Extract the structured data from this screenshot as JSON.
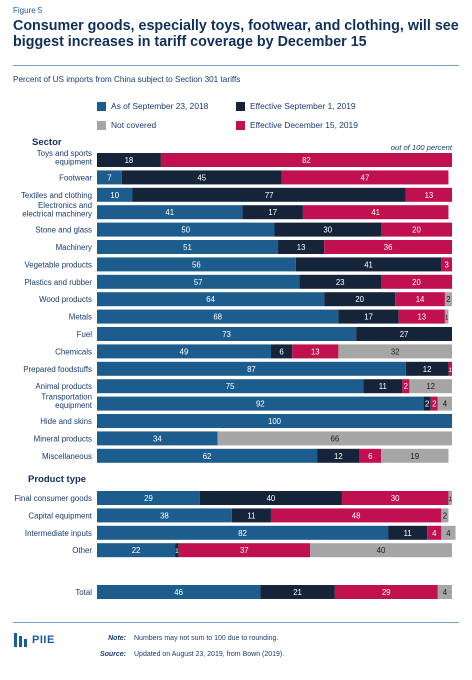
{
  "figure_label": "Figure 5",
  "title": "Consumer goods, especially toys, footwear, and clothing, will see biggest increases in tariff coverage by December 15",
  "subtitle": "Percent of US imports from China subject to Section 301 tariffs",
  "colors": {
    "sep2018": "#1d5d8e",
    "sep2019": "#16243a",
    "notcovered": "#a6a6a6",
    "dec2019": "#c0104f"
  },
  "legend": [
    {
      "key": "sep2018",
      "label": "As of September 23, 2018"
    },
    {
      "key": "sep2019",
      "label": "Effective September 1, 2019"
    },
    {
      "key": "notcovered",
      "label": "Not covered"
    },
    {
      "key": "dec2019",
      "label": "Effective December 15, 2019"
    }
  ],
  "sector_heading": "Sector",
  "product_heading": "Product type",
  "out_of_label": "out of 100 percent",
  "chart_data": {
    "type": "bar",
    "orientation": "horizontal-stacked",
    "xlim": [
      0,
      100
    ],
    "series_order": [
      "sep2018",
      "sep2019",
      "dec2019",
      "notcovered"
    ],
    "groups": [
      {
        "rows": [
          {
            "label": "Toys and sports equipment",
            "values": [
              0,
              18,
              82,
              0
            ]
          },
          {
            "label": "Footwear",
            "values": [
              7,
              45,
              47,
              0
            ]
          },
          {
            "label": "Textiles and clothing",
            "values": [
              10,
              77,
              13,
              0
            ]
          },
          {
            "label": "Electronics and electrical machinery",
            "values": [
              41,
              17,
              41,
              0
            ]
          },
          {
            "label": "Stone and glass",
            "values": [
              50,
              30,
              20,
              0
            ]
          },
          {
            "label": "Machinery",
            "values": [
              51,
              13,
              36,
              0
            ]
          },
          {
            "label": "Vegetable products",
            "values": [
              56,
              41,
              3,
              0
            ]
          },
          {
            "label": "Plastics and rubber",
            "values": [
              57,
              23,
              20,
              0
            ]
          },
          {
            "label": "Wood products",
            "values": [
              64,
              20,
              14,
              2
            ]
          },
          {
            "label": "Metals",
            "values": [
              68,
              17,
              13,
              1
            ]
          },
          {
            "label": "Fuel",
            "values": [
              73,
              27,
              0,
              0
            ]
          },
          {
            "label": "Chemicals",
            "values": [
              49,
              6,
              13,
              32
            ]
          },
          {
            "label": "Prepared foodstuffs",
            "values": [
              87,
              12,
              1,
              0
            ]
          },
          {
            "label": "Animal products",
            "values": [
              75,
              11,
              2,
              12
            ]
          },
          {
            "label": "Transportation equipment",
            "values": [
              92,
              2,
              2,
              4
            ]
          },
          {
            "label": "Hide and skins",
            "values": [
              100,
              0,
              0,
              0
            ]
          },
          {
            "label": "Mineral products",
            "values": [
              34,
              0,
              0,
              66
            ]
          },
          {
            "label": "Miscellaneous",
            "values": [
              62,
              12,
              6,
              19
            ]
          }
        ]
      },
      {
        "rows": [
          {
            "label": "Final consumer goods",
            "values": [
              29,
              40,
              30,
              1
            ]
          },
          {
            "label": "Capital equipment",
            "values": [
              38,
              11,
              48,
              2
            ]
          },
          {
            "label": "Intermediate inputs",
            "values": [
              82,
              11,
              4,
              4
            ]
          },
          {
            "label": "Other",
            "values": [
              22,
              1,
              37,
              40
            ]
          }
        ]
      },
      {
        "rows": [
          {
            "label": "Total",
            "values": [
              46,
              21,
              29,
              4
            ]
          }
        ]
      }
    ]
  },
  "note_label": "Note:",
  "note_text": "Numbers may not sum to 100 due to rounding.",
  "source_label": "Source:",
  "source_text": "Updated on August 23, 2019, from Bown (2019).",
  "logo_text": "PIIE"
}
